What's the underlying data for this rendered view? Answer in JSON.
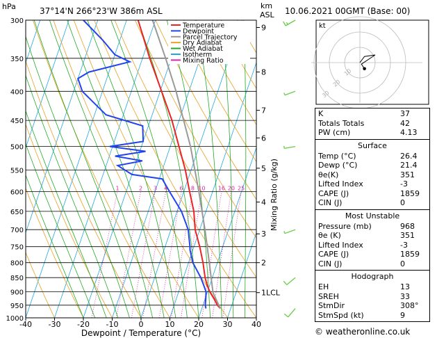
{
  "header": {
    "hpa_label": "hPa",
    "location": "37°14'N  266°23'W  386m ASL",
    "km_label": "km",
    "asl_label": "ASL",
    "datetime": "10.06.2021 00GMT (Base: 00)"
  },
  "chart_data": {
    "type": "skew-t",
    "xlabel": "Dewpoint / Temperature (°C)",
    "ylabel_right": "Mixing Ratio (g/kg)",
    "pressure_ticks": [
      300,
      350,
      400,
      450,
      500,
      550,
      600,
      650,
      700,
      750,
      800,
      850,
      900,
      950,
      1000
    ],
    "temp_ticks": [
      -40,
      -30,
      -20,
      -10,
      0,
      10,
      20,
      30,
      40
    ],
    "xlim": [
      -40,
      40
    ],
    "ylim_hpa": [
      1000,
      300
    ],
    "km_ticks": [
      {
        "label": "9",
        "p": 309
      },
      {
        "label": "8",
        "p": 370
      },
      {
        "label": "7",
        "p": 432
      },
      {
        "label": "6",
        "p": 483
      },
      {
        "label": "5",
        "p": 546
      },
      {
        "label": "4",
        "p": 626
      },
      {
        "label": "3",
        "p": 712
      },
      {
        "label": "2",
        "p": 800
      },
      {
        "label": "1LCL",
        "p": 903
      }
    ],
    "mixing_ratio_labels": [
      "1",
      "2",
      "3",
      "4",
      "6",
      "8",
      "10",
      "16",
      "20",
      "25"
    ],
    "legend": [
      {
        "name": "Temperature",
        "color": "#ee2222"
      },
      {
        "name": "Dewpoint",
        "color": "#2244ee"
      },
      {
        "name": "Parcel Trajectory",
        "color": "#999999"
      },
      {
        "name": "Dry Adiabat",
        "color": "#e8a020"
      },
      {
        "name": "Wet Adiabat",
        "color": "#22aa22"
      },
      {
        "name": "Isotherm",
        "color": "#1ea8e0"
      },
      {
        "name": "Mixing Ratio",
        "color": "#dd22aa"
      }
    ],
    "series": [
      {
        "name": "Temperature",
        "points": [
          [
            963,
            26.4
          ],
          [
            950,
            25.0
          ],
          [
            925,
            23.0
          ],
          [
            900,
            20.8
          ],
          [
            875,
            19.0
          ],
          [
            850,
            17.5
          ],
          [
            800,
            15.0
          ],
          [
            750,
            12.0
          ],
          [
            700,
            8.4
          ],
          [
            650,
            5.8
          ],
          [
            600,
            2.0
          ],
          [
            550,
            -2.0
          ],
          [
            500,
            -7.0
          ],
          [
            450,
            -12.5
          ],
          [
            400,
            -19.5
          ],
          [
            350,
            -27.5
          ],
          [
            300,
            -36.0
          ]
        ]
      },
      {
        "name": "Dewpoint",
        "points": [
          [
            963,
            21.4
          ],
          [
            950,
            20.8
          ],
          [
            925,
            20.2
          ],
          [
            900,
            19.5
          ],
          [
            875,
            17.8
          ],
          [
            850,
            16.0
          ],
          [
            800,
            11.5
          ],
          [
            760,
            9.0
          ],
          [
            750,
            8.6
          ],
          [
            700,
            6.0
          ],
          [
            650,
            1.5
          ],
          [
            600,
            -5.0
          ],
          [
            570,
            -9.0
          ],
          [
            560,
            -20.0
          ],
          [
            540,
            -26.0
          ],
          [
            530,
            -18.0
          ],
          [
            520,
            -28.0
          ],
          [
            510,
            -18.0
          ],
          [
            500,
            -31.0
          ],
          [
            490,
            -20.0
          ],
          [
            460,
            -22.0
          ],
          [
            440,
            -36.0
          ],
          [
            400,
            -47.0
          ],
          [
            380,
            -50.0
          ],
          [
            370,
            -47.0
          ],
          [
            355,
            -34.0
          ],
          [
            345,
            -40.0
          ],
          [
            325,
            -46.0
          ],
          [
            300,
            -55.0
          ]
        ]
      },
      {
        "name": "Parcel Trajectory",
        "points": [
          [
            963,
            26.4
          ],
          [
            903,
            22.0
          ],
          [
            850,
            19.6
          ],
          [
            800,
            17.2
          ],
          [
            700,
            11.8
          ],
          [
            600,
            5.2
          ],
          [
            500,
            -3.0
          ],
          [
            400,
            -14.5
          ],
          [
            350,
            -22.0
          ],
          [
            300,
            -31.0
          ]
        ]
      }
    ],
    "winds": [
      {
        "p": 963,
        "dir": 220,
        "spd": 10
      },
      {
        "p": 850,
        "dir": 230,
        "spd": 10
      },
      {
        "p": 700,
        "dir": 250,
        "spd": 5
      },
      {
        "p": 500,
        "dir": 260,
        "spd": 5
      },
      {
        "p": 400,
        "dir": 250,
        "spd": 5
      },
      {
        "p": 300,
        "dir": 240,
        "spd": 15
      }
    ],
    "hodograph": {
      "label": "kt",
      "ring_labels": [
        "10",
        "20",
        "30"
      ],
      "trace_uv": [
        [
          0,
          0
        ],
        [
          3,
          4
        ],
        [
          10,
          5
        ],
        [
          1,
          -1
        ],
        [
          3,
          -4
        ]
      ],
      "storm_uv": [
        3,
        -4
      ]
    }
  },
  "indices": {
    "rows": [
      {
        "k": "K",
        "v": "37"
      },
      {
        "k": "Totals Totals",
        "v": "42"
      },
      {
        "k": "PW (cm)",
        "v": "4.13"
      }
    ]
  },
  "surface": {
    "title": "Surface",
    "rows": [
      {
        "k": "Temp (°C)",
        "v": "26.4"
      },
      {
        "k": "Dewp (°C)",
        "v": "21.4"
      },
      {
        "k": "θe(K)",
        "v": "351"
      },
      {
        "k": "Lifted Index",
        "v": "-3"
      },
      {
        "k": "CAPE (J)",
        "v": "1859"
      },
      {
        "k": "CIN (J)",
        "v": "0"
      }
    ]
  },
  "unstable": {
    "title": "Most Unstable",
    "rows": [
      {
        "k": "Pressure (mb)",
        "v": "968"
      },
      {
        "k": "θe (K)",
        "v": "351"
      },
      {
        "k": "Lifted Index",
        "v": "-3"
      },
      {
        "k": "CAPE (J)",
        "v": "1859"
      },
      {
        "k": "CIN (J)",
        "v": "0"
      }
    ]
  },
  "hodo_table": {
    "title": "Hodograph",
    "rows": [
      {
        "k": "EH",
        "v": "13"
      },
      {
        "k": "SREH",
        "v": "33"
      },
      {
        "k": "StmDir",
        "v": "308°"
      },
      {
        "k": "StmSpd (kt)",
        "v": "9"
      }
    ]
  },
  "footer": {
    "text": "© weatheronline.co.uk"
  }
}
